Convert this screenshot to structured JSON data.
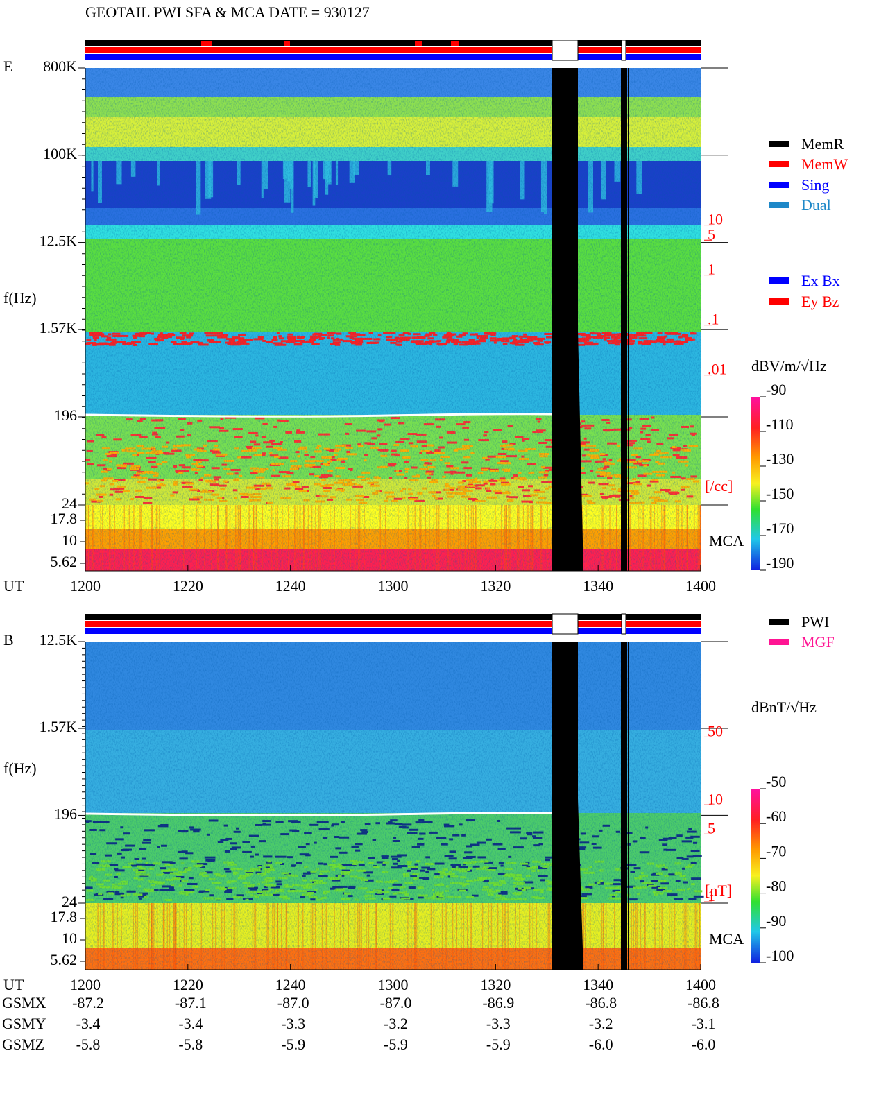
{
  "header": {
    "title": "GEOTAIL  PWI SFA & MCA   DATE = 930127"
  },
  "chart_data": [
    {
      "type": "spectrogram",
      "panel_label": "E",
      "ylabel": "f(Hz)",
      "xlabel": "UT",
      "log_y": true,
      "ylim": [
        800000,
        24
      ],
      "yticks": [
        {
          "value": 800000,
          "label": "800K"
        },
        {
          "value": 100000,
          "label": "100K"
        },
        {
          "value": 12500,
          "label": "12.5K"
        },
        {
          "value": 1570,
          "label": "1.57K"
        },
        196,
        24
      ],
      "mca_ticks": [
        17.8,
        10,
        5.62
      ],
      "mca_label": "MCA",
      "xlim": [
        0,
        120
      ],
      "xticks": [
        {
          "value": 0,
          "label": "1200"
        },
        {
          "value": 20,
          "label": "1220"
        },
        {
          "value": 40,
          "label": "1240"
        },
        {
          "value": 60,
          "label": "1300"
        },
        {
          "value": 80,
          "label": "1320"
        },
        {
          "value": 100,
          "label": "1340"
        },
        {
          "value": 120,
          "label": "1400"
        }
      ],
      "y2lim": [
        14000,
        2.5e-05
      ],
      "y2ticks": [
        10,
        5,
        1,
        {
          "value": 0.1,
          "label": ".1"
        },
        {
          "value": 0.01,
          "label": ".01"
        }
      ],
      "y2label": "[/cc]",
      "colorbar": {
        "label": "dBV/m/√Hz",
        "lim": [
          -90,
          -190
        ],
        "ticks": [
          -90,
          -110,
          -130,
          -150,
          -170,
          -190
        ]
      },
      "legends": [
        [
          {
            "name": "MemR",
            "color": "#000000"
          },
          {
            "name": "MemW",
            "color": "#ff0000"
          },
          {
            "name": "Sing",
            "color": "#0000ff"
          },
          {
            "name": "Dual",
            "color": "#1e88c8"
          }
        ],
        [
          {
            "name": "Ex Bx",
            "color": "#0000ff"
          },
          {
            "name": "Ey Bz",
            "color": "#ff0000"
          }
        ]
      ]
    },
    {
      "type": "spectrogram",
      "panel_label": "B",
      "ylabel": "f(Hz)",
      "xlabel": "UT",
      "log_y": true,
      "ylim": [
        12500,
        24
      ],
      "yticks": [
        {
          "value": 12500,
          "label": "12.5K"
        },
        {
          "value": 1570,
          "label": "1.57K"
        },
        196,
        24
      ],
      "mca_ticks": [
        17.8,
        10,
        5.62
      ],
      "mca_label": "MCA",
      "xlim": [
        0,
        120
      ],
      "xticks": [
        {
          "value": 0,
          "label": "1200"
        },
        {
          "value": 20,
          "label": "1220"
        },
        {
          "value": 40,
          "label": "1240"
        },
        {
          "value": 60,
          "label": "1300"
        },
        {
          "value": 80,
          "label": "1320"
        },
        {
          "value": 100,
          "label": "1340"
        },
        {
          "value": 120,
          "label": "1400"
        }
      ],
      "y2lim": [
        480,
        0.97
      ],
      "y2ticks": [
        50,
        10,
        5,
        1
      ],
      "y2label": "[nT]",
      "colorbar": {
        "label": "dBnT/√Hz",
        "lim": [
          -50,
          -100
        ],
        "ticks": [
          -50,
          -60,
          -70,
          -80,
          -90,
          -100
        ]
      },
      "legends": [
        [
          {
            "name": "PWI",
            "color": "#000000"
          },
          {
            "name": "MGF",
            "color": "#ff1493"
          }
        ]
      ]
    }
  ],
  "orbit": {
    "rows": [
      {
        "label": "GSMX",
        "values": [
          "-87.2",
          "-87.1",
          "-87.0",
          "-87.0",
          "-86.9",
          "-86.8",
          "-86.8"
        ]
      },
      {
        "label": "GSMY",
        "values": [
          "-3.4",
          "-3.4",
          "-3.3",
          "-3.2",
          "-3.3",
          "-3.2",
          "-3.1"
        ]
      },
      {
        "label": "GSMZ",
        "values": [
          "-5.8",
          "-5.8",
          "-5.9",
          "-5.9",
          "-5.9",
          "-6.0",
          "-6.0"
        ]
      }
    ]
  }
}
